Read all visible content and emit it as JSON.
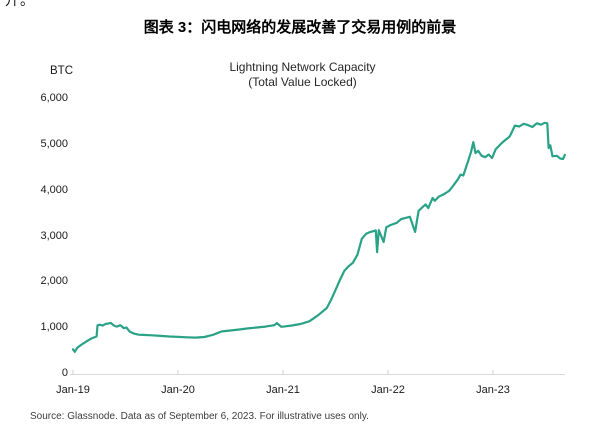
{
  "page": {
    "clipped_text_fragment": "升。",
    "figure_title": "图表 3：闪电网络的发展改善了交易用例的前景",
    "source_note": "Source: Glassnode. Data as of September 6, 2023. For illustrative uses only."
  },
  "colors": {
    "line": "#2aa287",
    "axis": "#d9d9d9",
    "tick": "#cfcfcf",
    "text": "#1a1a1a"
  },
  "chart_data": {
    "type": "line",
    "title": "Lightning Network Capacity",
    "subtitle": "(Total Value Locked)",
    "unit_label": "BTC",
    "series_name": "Lightning Network capacity (BTC)",
    "x_unit": "months since Jan-2019",
    "x_range_months": [
      0,
      56.2
    ],
    "x_tick_months": [
      0,
      12,
      24,
      36,
      48
    ],
    "x_tick_labels": [
      "Jan-19",
      "Jan-20",
      "Jan-21",
      "Jan-22",
      "Jan-23"
    ],
    "y_ticks": [
      0,
      1000,
      2000,
      3000,
      4000,
      5000,
      6000
    ],
    "y_tick_labels": [
      "0",
      "1,000",
      "2,000",
      "3,000",
      "4,000",
      "5,000",
      "6,000"
    ],
    "ylim": [
      0,
      6000
    ],
    "grid": false,
    "legend": "none",
    "line_color": "#2aa287",
    "points": [
      [
        0,
        540
      ],
      [
        0.2,
        485
      ],
      [
        0.5,
        575
      ],
      [
        1,
        645
      ],
      [
        1.5,
        705
      ],
      [
        2,
        765
      ],
      [
        2.5,
        805
      ],
      [
        2.7,
        820
      ],
      [
        2.8,
        1060
      ],
      [
        3,
        1075
      ],
      [
        3.4,
        1055
      ],
      [
        3.7,
        1090
      ],
      [
        4,
        1100
      ],
      [
        4.3,
        1115
      ],
      [
        4.7,
        1055
      ],
      [
        5,
        1035
      ],
      [
        5.4,
        1065
      ],
      [
        5.8,
        1000
      ],
      [
        6.1,
        1015
      ],
      [
        6.5,
        920
      ],
      [
        7,
        880
      ],
      [
        7.5,
        858
      ],
      [
        8,
        852
      ],
      [
        9,
        845
      ],
      [
        10,
        832
      ],
      [
        11,
        818
      ],
      [
        12,
        810
      ],
      [
        13,
        800
      ],
      [
        14,
        795
      ],
      [
        15,
        808
      ],
      [
        16,
        855
      ],
      [
        17,
        930
      ],
      [
        18,
        950
      ],
      [
        19,
        970
      ],
      [
        20,
        995
      ],
      [
        21,
        1015
      ],
      [
        22,
        1035
      ],
      [
        23,
        1065
      ],
      [
        23.3,
        1110
      ],
      [
        23.8,
        1030
      ],
      [
        24.3,
        1040
      ],
      [
        25,
        1058
      ],
      [
        26,
        1090
      ],
      [
        27,
        1150
      ],
      [
        28,
        1280
      ],
      [
        29,
        1440
      ],
      [
        29.5,
        1620
      ],
      [
        30,
        1830
      ],
      [
        30.5,
        2050
      ],
      [
        31,
        2250
      ],
      [
        31.5,
        2350
      ],
      [
        32,
        2430
      ],
      [
        32.5,
        2600
      ],
      [
        33,
        2950
      ],
      [
        33.5,
        3060
      ],
      [
        34,
        3100
      ],
      [
        34.6,
        3130
      ],
      [
        34.75,
        2660
      ],
      [
        34.95,
        3140
      ],
      [
        35.5,
        2880
      ],
      [
        35.8,
        3200
      ],
      [
        36.3,
        3250
      ],
      [
        37,
        3300
      ],
      [
        37.5,
        3380
      ],
      [
        38.5,
        3430
      ],
      [
        39.1,
        3100
      ],
      [
        39.5,
        3560
      ],
      [
        40,
        3650
      ],
      [
        40.3,
        3700
      ],
      [
        40.6,
        3620
      ],
      [
        41.1,
        3840
      ],
      [
        41.35,
        3780
      ],
      [
        41.8,
        3870
      ],
      [
        42.2,
        3905
      ],
      [
        42.6,
        3950
      ],
      [
        43,
        4000
      ],
      [
        43.5,
        4120
      ],
      [
        44,
        4250
      ],
      [
        44.3,
        4350
      ],
      [
        44.6,
        4330
      ],
      [
        45.2,
        4670
      ],
      [
        45.5,
        4850
      ],
      [
        45.75,
        5060
      ],
      [
        46,
        4820
      ],
      [
        46.3,
        4870
      ],
      [
        46.7,
        4760
      ],
      [
        47.1,
        4730
      ],
      [
        47.5,
        4790
      ],
      [
        47.9,
        4713
      ],
      [
        48.3,
        4900
      ],
      [
        49,
        5040
      ],
      [
        49.4,
        5105
      ],
      [
        49.9,
        5180
      ],
      [
        50.2,
        5300
      ],
      [
        50.5,
        5420
      ],
      [
        51,
        5400
      ],
      [
        51.5,
        5460
      ],
      [
        52,
        5430
      ],
      [
        52.5,
        5390
      ],
      [
        53,
        5470
      ],
      [
        53.5,
        5440
      ],
      [
        53.9,
        5480
      ],
      [
        54.2,
        5470
      ],
      [
        54.35,
        4930
      ],
      [
        54.55,
        4990
      ],
      [
        54.8,
        4750
      ],
      [
        55.3,
        4760
      ],
      [
        55.7,
        4700
      ],
      [
        56,
        4690
      ],
      [
        56.2,
        4780
      ]
    ]
  }
}
